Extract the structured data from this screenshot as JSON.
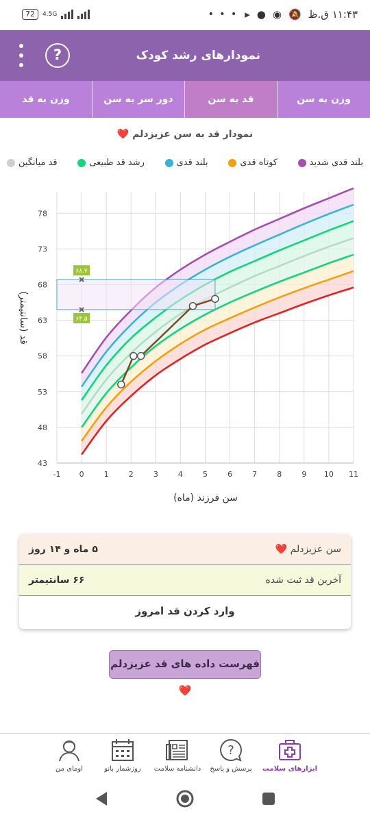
{
  "status_bar": {
    "battery": "72",
    "network": "4.5G",
    "time": "۱۱:۴۳ ق.ظ",
    "more": "• • •"
  },
  "app_bar": {
    "title": "نمودارهای رشد کودک",
    "help": "?"
  },
  "tabs": [
    {
      "label": "وزن به سن",
      "active": false
    },
    {
      "label": "قد به سن",
      "active": true
    },
    {
      "label": "دور سر به سن",
      "active": false
    },
    {
      "label": "وزن به قد",
      "active": false
    }
  ],
  "chart_title": "نمودار قد به سن عزیزدلم ❤️",
  "legend": [
    {
      "label": "بلند قدی شدید",
      "color": "#a24fb0"
    },
    {
      "label": "کوتاه قدی",
      "color": "#f0a010"
    },
    {
      "label": "بلند قدی",
      "color": "#3ab3d6"
    },
    {
      "label": "رشد قد طبیعی",
      "color": "#13d57b"
    },
    {
      "label": "قد میانگین",
      "color": "#cfcfcf"
    }
  ],
  "chart_data": {
    "type": "line",
    "xlabel": "سن فرزند (ماه)",
    "ylabel": "قد (سانتیمتر)",
    "xlim": [
      -1,
      11
    ],
    "ylim": [
      43,
      81
    ],
    "x_ticks": [
      "-1",
      "0",
      "1",
      "2",
      "3",
      "4",
      "5",
      "6",
      "7",
      "8",
      "9",
      "10",
      "11"
    ],
    "y_ticks": [
      "43",
      "48",
      "53",
      "58",
      "63",
      "68",
      "73",
      "78"
    ],
    "months": [
      0,
      1,
      2,
      3,
      4,
      5,
      6,
      7,
      8,
      9,
      10,
      11
    ],
    "percentile_curves": [
      {
        "color": "#a24fb0",
        "values": [
          55.6,
          60.6,
          64.4,
          67.6,
          70.1,
          72.2,
          74.0,
          75.7,
          77.2,
          78.7,
          80.1,
          81.5
        ]
      },
      {
        "color": "#3ab3d6",
        "values": [
          53.7,
          58.6,
          62.4,
          65.5,
          68.0,
          70.1,
          71.9,
          73.5,
          75.0,
          76.5,
          77.9,
          79.2
        ]
      },
      {
        "color": "#13d57b",
        "values": [
          51.8,
          56.7,
          60.5,
          63.4,
          65.9,
          68.0,
          69.8,
          71.3,
          72.8,
          74.2,
          75.6,
          76.9
        ]
      },
      {
        "color": "#b8d8c8",
        "values": [
          49.9,
          54.7,
          58.4,
          61.4,
          63.9,
          65.9,
          67.6,
          69.2,
          70.6,
          72.0,
          73.3,
          74.5
        ]
      },
      {
        "color": "#13d57b",
        "values": [
          48.0,
          52.8,
          56.4,
          59.4,
          61.8,
          63.8,
          65.5,
          67.0,
          68.4,
          69.7,
          71.0,
          72.2
        ]
      },
      {
        "color": "#f0a010",
        "values": [
          46.1,
          50.8,
          54.4,
          57.3,
          59.7,
          61.7,
          63.3,
          64.8,
          66.2,
          67.5,
          68.7,
          69.9
        ]
      },
      {
        "color": "#e02424",
        "values": [
          44.2,
          48.9,
          52.4,
          55.3,
          57.6,
          59.6,
          61.2,
          62.7,
          64.0,
          65.3,
          66.5,
          67.6
        ]
      }
    ],
    "band_fills": [
      "#f1d9f4",
      "#d3eef7",
      "#d5f7e3",
      "#ddf5e8",
      "#fdf0cf",
      "#fbd6d2"
    ],
    "child_series": {
      "color": "#7b4a1f",
      "points": [
        [
          1.6,
          54.0
        ],
        [
          2.1,
          58.0
        ],
        [
          2.4,
          58.0
        ],
        [
          4.5,
          65.0
        ],
        [
          5.4,
          66.0
        ]
      ]
    },
    "reference_range": {
      "low": 64.5,
      "high": 68.7,
      "label_low": "۶۴.۵",
      "label_high": "۶۸.۷"
    }
  },
  "info_card": {
    "age_label": "سن عزیزدلم ❤️",
    "age_value": "۵ ماه و ۱۴ روز",
    "height_label": "آخرین قد ثبت شده",
    "height_value": "۶۶ سانتیمتر",
    "enter_today": "وارد کردن قد امروز"
  },
  "list_button": "فهرست داده های قد عزیزدلم ❤️",
  "bottom_nav": [
    {
      "label": "ابزارهای سلامت",
      "icon": "medical-kit-icon",
      "active": true
    },
    {
      "label": "پرسش و پاسخ",
      "icon": "question-bubble-icon",
      "active": false
    },
    {
      "label": "دانشنامه سلامت",
      "icon": "encyclopedia-icon",
      "active": false
    },
    {
      "label": "روزشمار بانو",
      "icon": "calendar-icon",
      "active": false
    },
    {
      "label": "اومای من",
      "icon": "profile-icon",
      "active": false
    }
  ]
}
